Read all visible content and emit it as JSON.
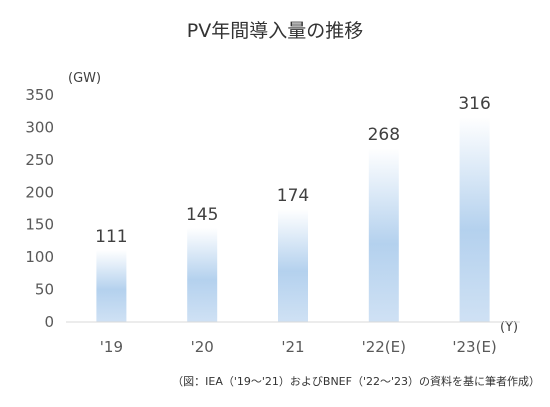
{
  "chart_data": {
    "type": "bar",
    "title": "PV年間導入量の推移",
    "y_unit": "(GW)",
    "x_unit": "(Y)",
    "categories": [
      "'19",
      "'20",
      "'21",
      "'22(E)",
      "'23(E)"
    ],
    "values": [
      111,
      145,
      174,
      268,
      316
    ],
    "ylim": [
      0,
      350
    ],
    "yticks": [
      0,
      50,
      100,
      150,
      200,
      250,
      300,
      350
    ],
    "grid": false,
    "legend": "none",
    "bar_color_top": "#ffffff",
    "bar_color_mid": "#b4d1ee",
    "bar_color_bottom": "#cfe1f4",
    "axis_color": "#d9d9d9",
    "source": "（図：IEA（'19～'21）およびBNEF（'22～'23）の資料を基に筆者作成）"
  }
}
